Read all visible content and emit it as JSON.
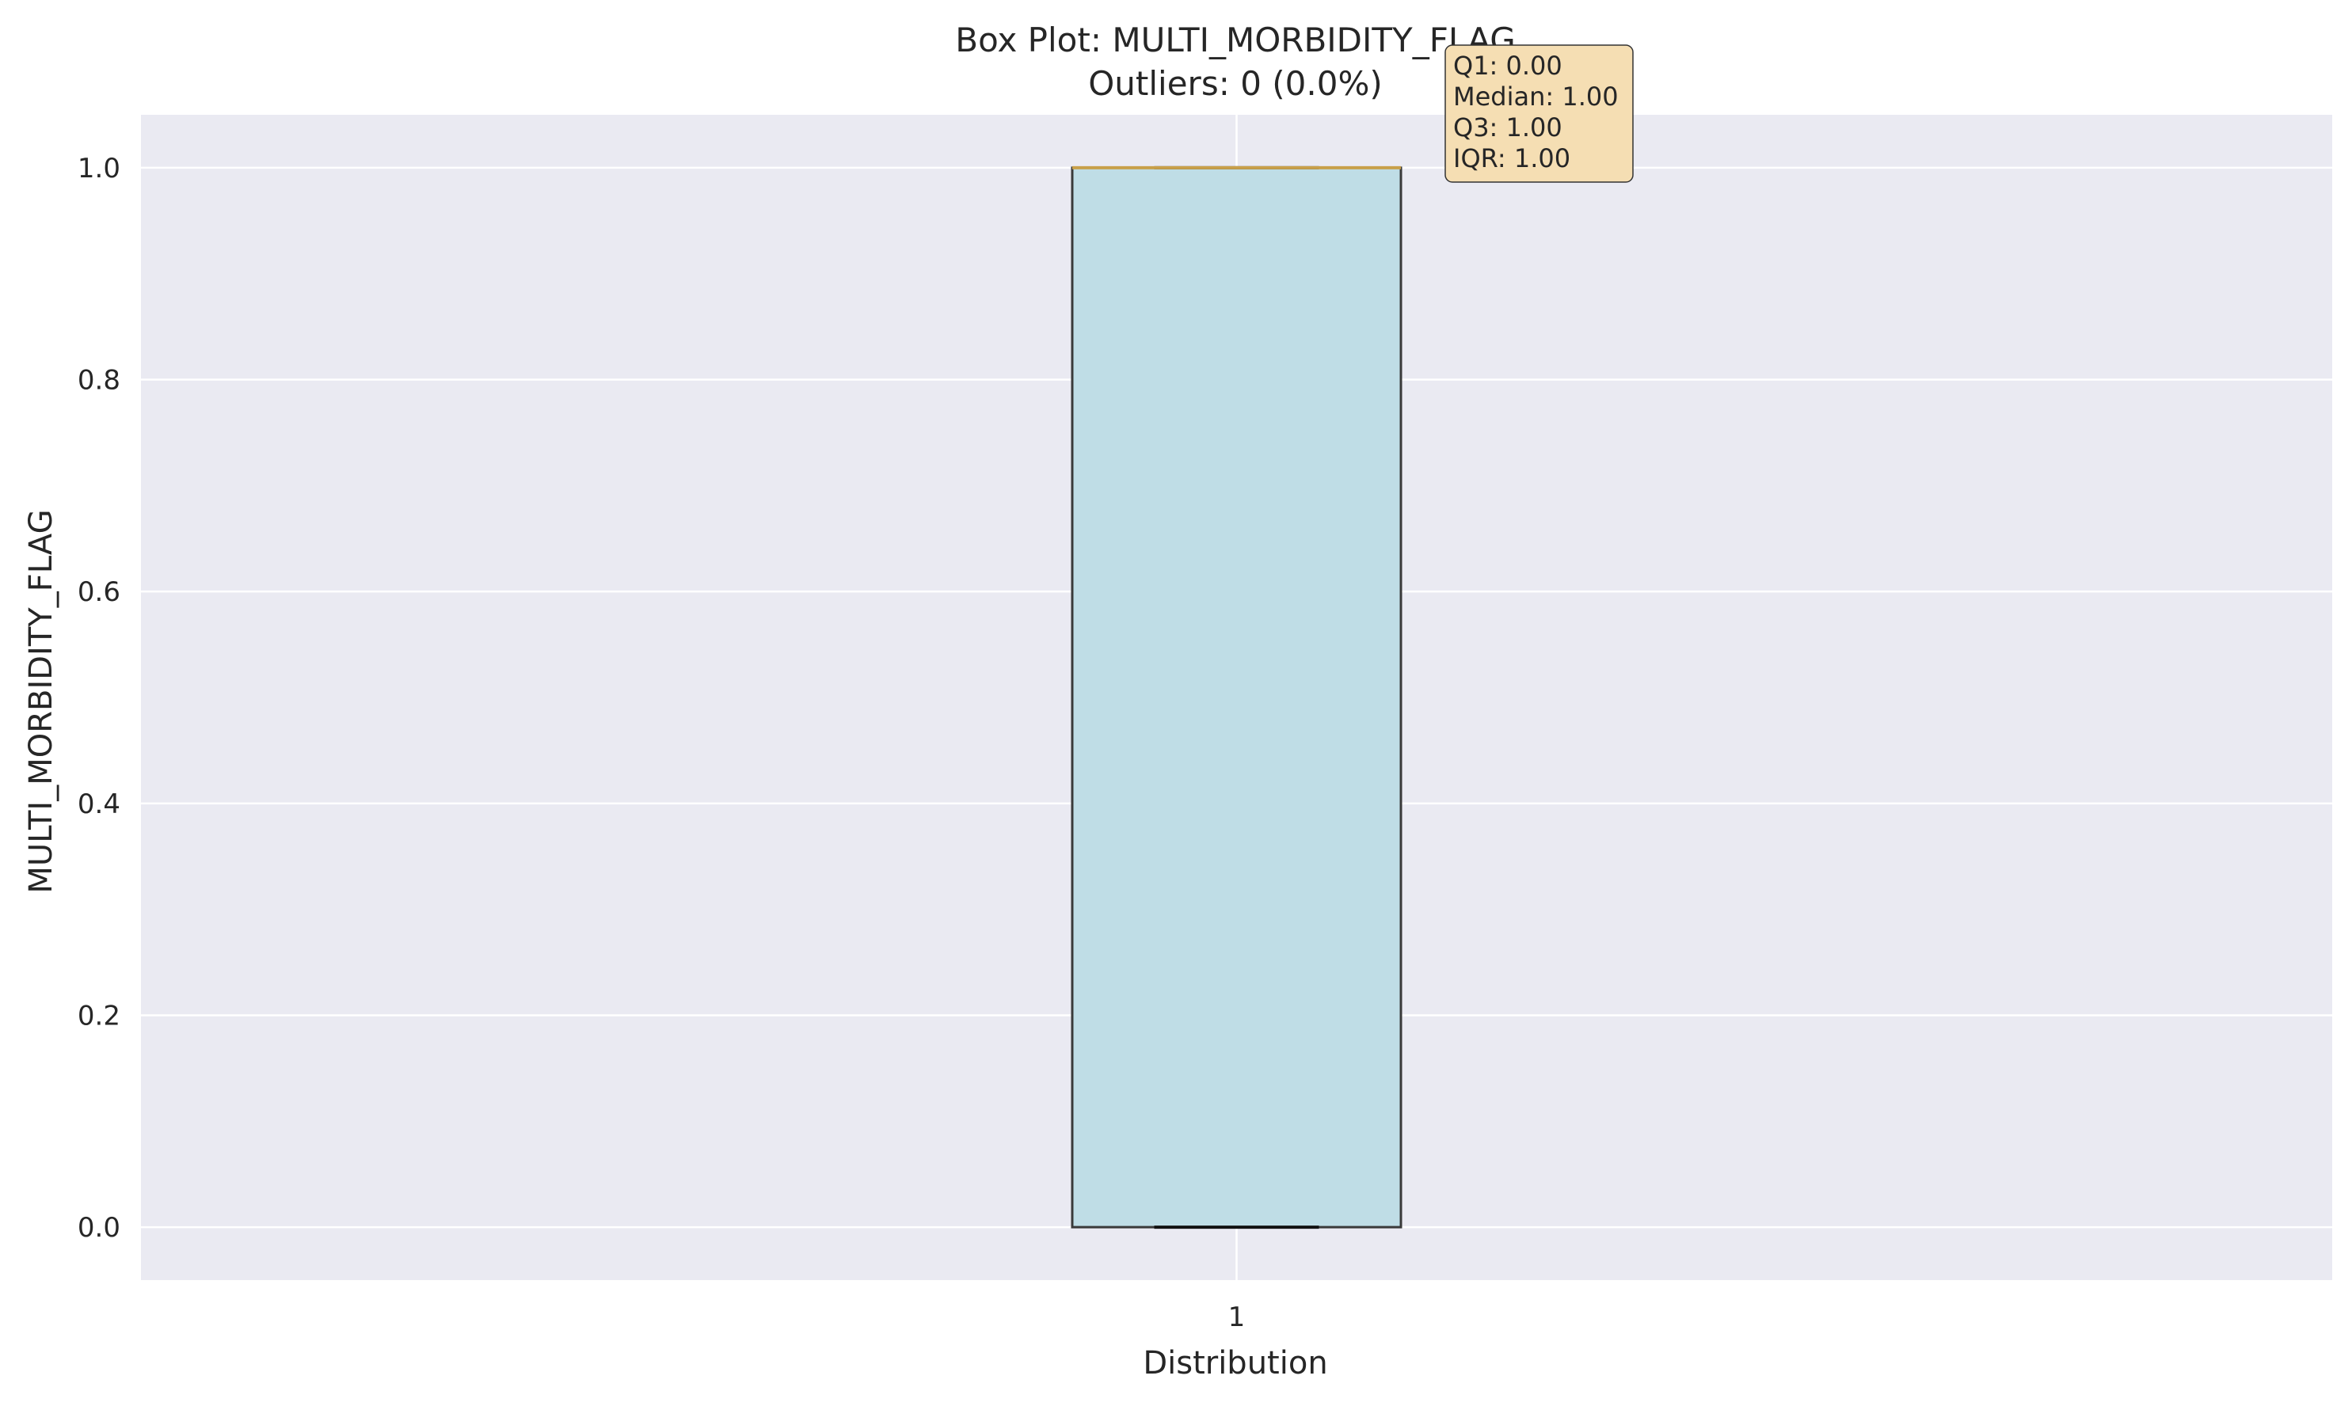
{
  "chart_data": {
    "type": "box",
    "title": "Box Plot: MULTI_MORBIDITY_FLAG",
    "subtitle": "Outliers: 0 (0.0%)",
    "xlabel": "Distribution",
    "ylabel": "MULTI_MORBIDITY_FLAG",
    "categories": [
      "1"
    ],
    "series": [
      {
        "q1": 0.0,
        "median": 1.0,
        "q3": 1.0,
        "whisker_low": 0.0,
        "whisker_high": 1.0,
        "outliers": []
      }
    ],
    "ylim": [
      -0.05,
      1.05
    ],
    "yticks": [
      0.0,
      0.2,
      0.4,
      0.6,
      0.8,
      1.0
    ],
    "ytick_labels": [
      "0.0",
      "0.2",
      "0.4",
      "0.6",
      "0.8",
      "1.0"
    ],
    "grid": true,
    "stats_box": [
      "Q1: 0.00",
      "Median: 1.00",
      "Q3: 1.00",
      "IQR: 1.00"
    ],
    "colors": {
      "plot_background": "#eaeaf2",
      "gridline": "#ffffff",
      "box_fill": "#bfdde6",
      "box_edge": "#3a3a3a",
      "median_line": "#c8a04a",
      "stats_box_fill": "#f5deb3"
    }
  }
}
